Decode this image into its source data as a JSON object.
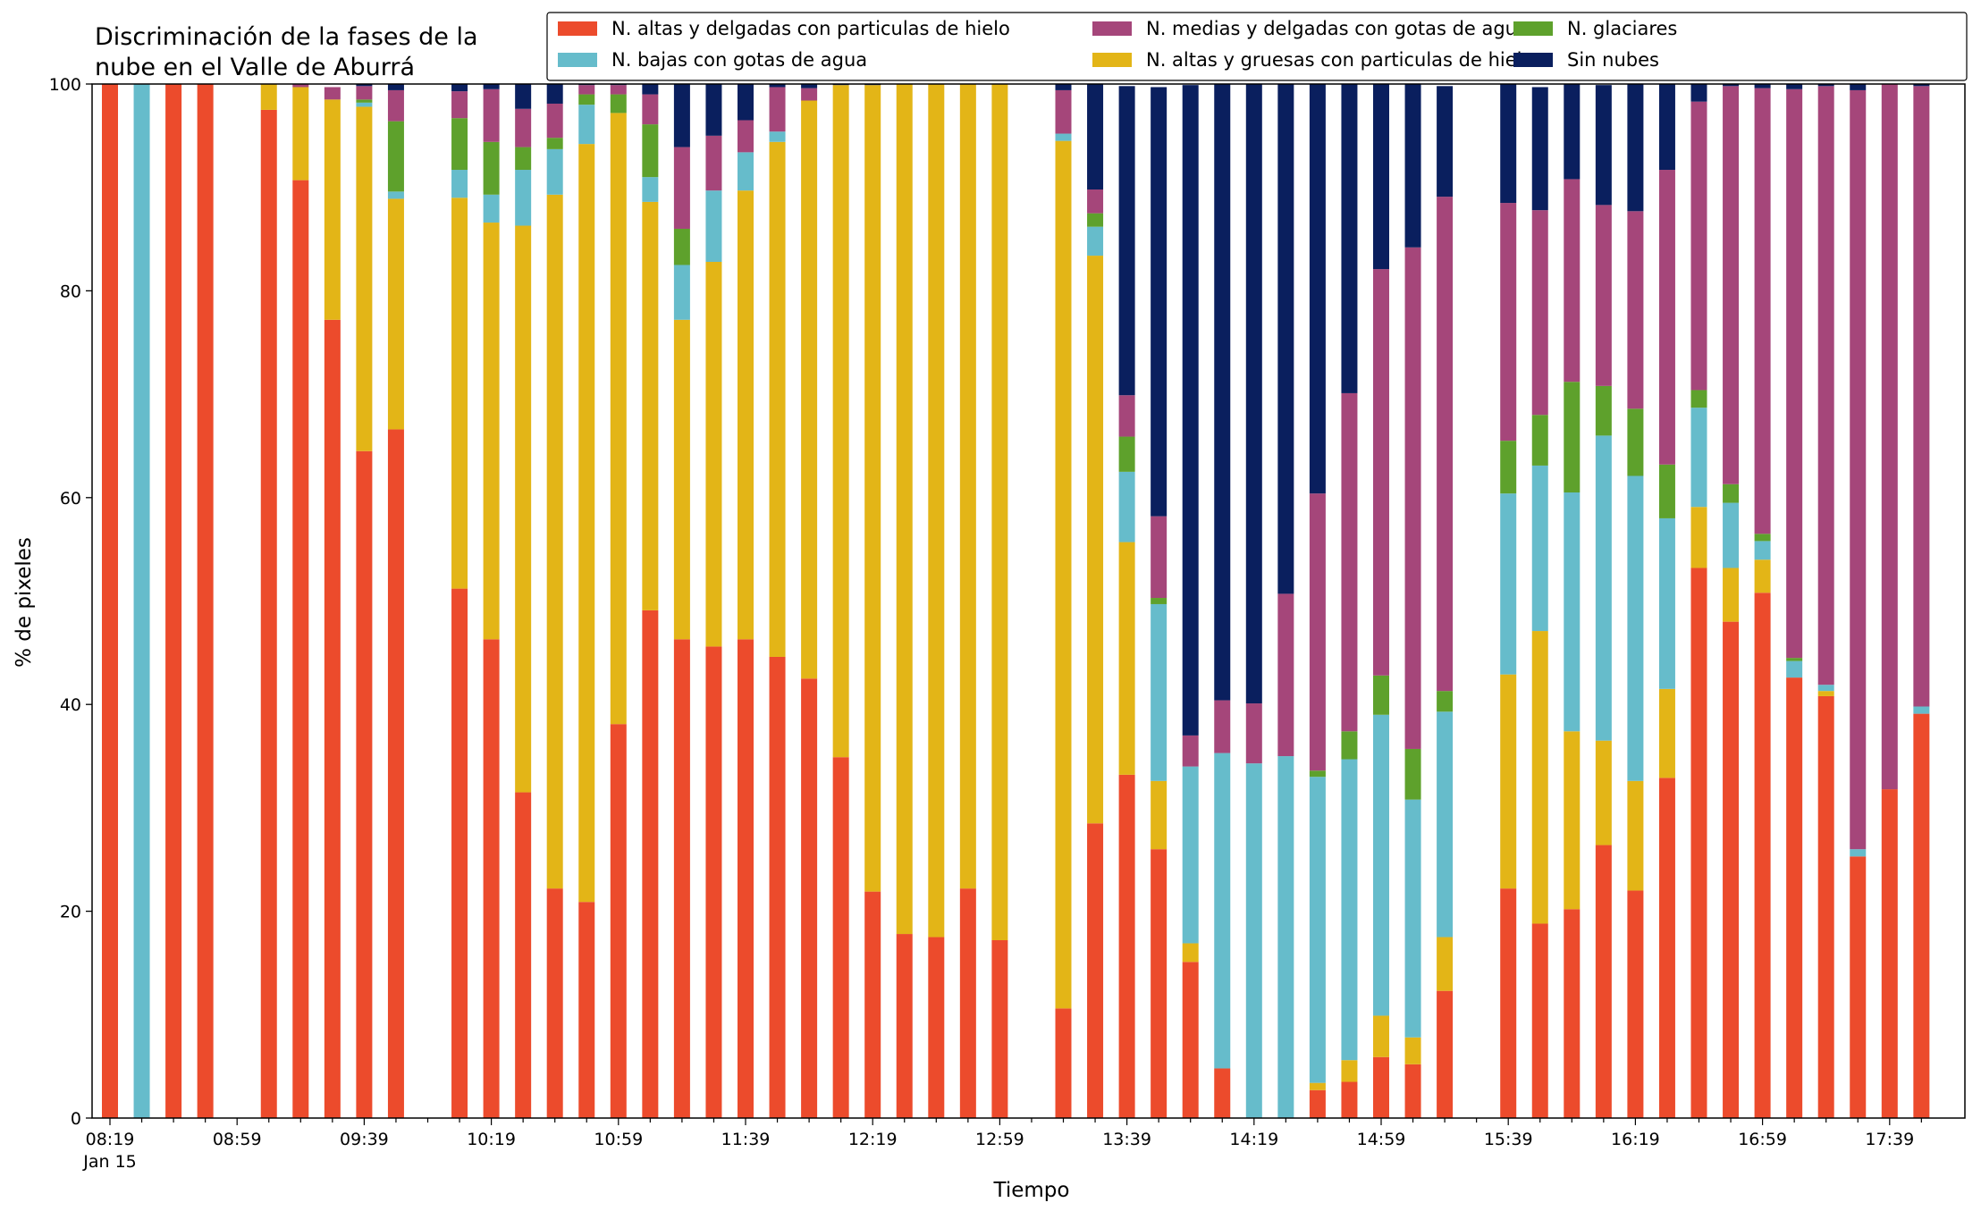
{
  "chart_data": {
    "type": "bar",
    "stacked": true,
    "title": [
      "Discriminación de la fases de la",
      "nube en el Valle de Aburrá"
    ],
    "xlabel": "Tiempo",
    "ylabel": "% de pixeles",
    "ylim": [
      0,
      100
    ],
    "yticks": [
      0,
      20,
      40,
      60,
      80,
      100
    ],
    "x_date_label": "Jan 15",
    "x_ticks": [
      {
        "label": "08:19",
        "index": 0
      },
      {
        "label": "08:59",
        "index": 4
      },
      {
        "label": "09:39",
        "index": 8
      },
      {
        "label": "10:19",
        "index": 12
      },
      {
        "label": "10:59",
        "index": 16
      },
      {
        "label": "11:39",
        "index": 20
      },
      {
        "label": "12:19",
        "index": 24
      },
      {
        "label": "12:59",
        "index": 28
      },
      {
        "label": "13:39",
        "index": 32
      },
      {
        "label": "14:19",
        "index": 36
      },
      {
        "label": "14:59",
        "index": 40
      },
      {
        "label": "15:39",
        "index": 44
      },
      {
        "label": "16:19",
        "index": 48
      },
      {
        "label": "16:59",
        "index": 52
      },
      {
        "label": "17:39",
        "index": 56
      }
    ],
    "grid": false,
    "legend_position": "top",
    "categories": [
      "08:19",
      "08:29",
      "08:39",
      "08:49",
      "08:59",
      "09:09",
      "09:19",
      "09:29",
      "09:39",
      "09:49",
      "09:59",
      "10:09",
      "10:19",
      "10:29",
      "10:39",
      "10:49",
      "10:59",
      "11:09",
      "11:19",
      "11:29",
      "11:39",
      "11:49",
      "11:59",
      "12:09",
      "12:19",
      "12:29",
      "12:39",
      "12:49",
      "12:59",
      "13:09",
      "13:19",
      "13:29",
      "13:39",
      "13:49",
      "13:59",
      "14:09",
      "14:19",
      "14:29",
      "14:39",
      "14:49",
      "14:59",
      "15:09",
      "15:19",
      "15:29",
      "15:39",
      "15:49",
      "15:59",
      "16:09",
      "16:19",
      "16:29",
      "16:39",
      "16:49",
      "16:59",
      "17:09",
      "17:19",
      "17:29",
      "17:39",
      "17:49"
    ],
    "series": [
      {
        "name": "N. altas y delgadas con particulas de hielo",
        "color": "#ec4b2c",
        "values": [
          100,
          0,
          100,
          100,
          null,
          97.5,
          90.7,
          77.2,
          64.5,
          66.6,
          null,
          51.2,
          46.3,
          31.5,
          22.2,
          20.9,
          38.1,
          49.1,
          46.3,
          45.6,
          46.3,
          44.6,
          42.5,
          34.9,
          21.9,
          17.8,
          17.5,
          22.2,
          17.2,
          null,
          10.6,
          28.5,
          33.2,
          26.0,
          15.1,
          4.8,
          0,
          0,
          2.7,
          3.5,
          5.9,
          5.2,
          12.3,
          null,
          22.2,
          18.8,
          20.2,
          26.4,
          22.0,
          32.9,
          53.2,
          48.0,
          50.8,
          42.6,
          40.8,
          25.3,
          31.8,
          39.1
        ]
      },
      {
        "name": "N. altas y gruesas con particulas de hielo",
        "color": "#e3b517",
        "values": [
          0,
          0,
          0,
          0,
          null,
          2.5,
          9.0,
          21.3,
          33.3,
          22.3,
          null,
          37.8,
          40.3,
          54.8,
          67.1,
          73.3,
          59.1,
          39.5,
          30.9,
          37.2,
          43.4,
          49.8,
          55.9,
          65.0,
          78.0,
          82.2,
          82.5,
          77.8,
          82.8,
          null,
          83.9,
          54.9,
          22.5,
          6.6,
          1.8,
          0,
          0,
          0,
          0.7,
          2.1,
          4.0,
          2.6,
          5.2,
          null,
          20.7,
          28.3,
          17.2,
          10.1,
          10.6,
          8.6,
          5.9,
          5.2,
          3.2,
          0,
          0.5,
          0,
          0,
          0
        ]
      },
      {
        "name": "N. bajas con gotas de agua",
        "color": "#66bccb",
        "values": [
          0,
          100,
          0,
          0,
          null,
          0,
          0,
          0,
          0.4,
          0.7,
          null,
          2.7,
          2.7,
          5.4,
          4.4,
          3.8,
          0,
          2.4,
          5.3,
          6.9,
          3.7,
          1.0,
          0,
          0,
          0,
          0,
          0,
          0,
          0,
          null,
          0.7,
          2.8,
          6.8,
          17.1,
          17.1,
          30.5,
          34.3,
          35.0,
          29.6,
          29.1,
          29.1,
          23.0,
          21.8,
          null,
          17.5,
          16.0,
          23.1,
          29.5,
          29.5,
          16.5,
          9.6,
          6.3,
          1.8,
          1.6,
          0.6,
          0.7,
          0,
          0.7
        ]
      },
      {
        "name": "N. glaciares",
        "color": "#5ea12c",
        "values": [
          0,
          0,
          0,
          0,
          null,
          0,
          0,
          0,
          0.3,
          6.8,
          null,
          5.0,
          5.1,
          2.2,
          1.1,
          1.0,
          1.8,
          5.1,
          3.5,
          0,
          0,
          0,
          0,
          0,
          0,
          0,
          0,
          0,
          0,
          null,
          0,
          1.3,
          3.4,
          0.6,
          0,
          0,
          0,
          0,
          0.6,
          2.7,
          3.8,
          4.9,
          2.0,
          null,
          5.1,
          4.9,
          10.7,
          4.8,
          6.5,
          5.2,
          1.7,
          1.8,
          0.7,
          0.3,
          0,
          0,
          0,
          0
        ]
      },
      {
        "name": "N. medias y delgadas con gotas de agua",
        "color": "#a5467a",
        "values": [
          0,
          0,
          0,
          0,
          null,
          0,
          0.3,
          1.2,
          1.3,
          3.0,
          null,
          2.6,
          5.1,
          3.7,
          3.3,
          0.9,
          0.9,
          2.9,
          7.9,
          5.3,
          3.1,
          4.3,
          1.2,
          0,
          0,
          0,
          0,
          0,
          0,
          null,
          4.2,
          2.3,
          4.0,
          7.9,
          3.0,
          5.1,
          5.8,
          15.7,
          26.8,
          32.7,
          39.3,
          48.5,
          47.8,
          null,
          23.0,
          19.8,
          19.6,
          17.5,
          19.1,
          28.5,
          27.9,
          38.5,
          43.1,
          55.0,
          57.9,
          73.4,
          68.2,
          60.0
        ]
      },
      {
        "name": "Sin nubes",
        "color": "#0a1f5e",
        "values": [
          0,
          0,
          0,
          0,
          null,
          0,
          0,
          0,
          0.2,
          0.6,
          null,
          0.7,
          0.5,
          2.4,
          1.9,
          0.1,
          0.1,
          1.0,
          6.1,
          5.0,
          3.5,
          0.3,
          0.4,
          0.1,
          0.1,
          0,
          0,
          0,
          0,
          null,
          0.6,
          10.2,
          29.9,
          41.5,
          62.9,
          59.6,
          59.9,
          49.3,
          39.6,
          29.9,
          21.8,
          15.8,
          10.7,
          null,
          11.5,
          11.9,
          9.2,
          11.6,
          12.3,
          8.3,
          1.7,
          0.2,
          0.4,
          0.5,
          0.2,
          0.6,
          0,
          0.2
        ]
      }
    ]
  }
}
